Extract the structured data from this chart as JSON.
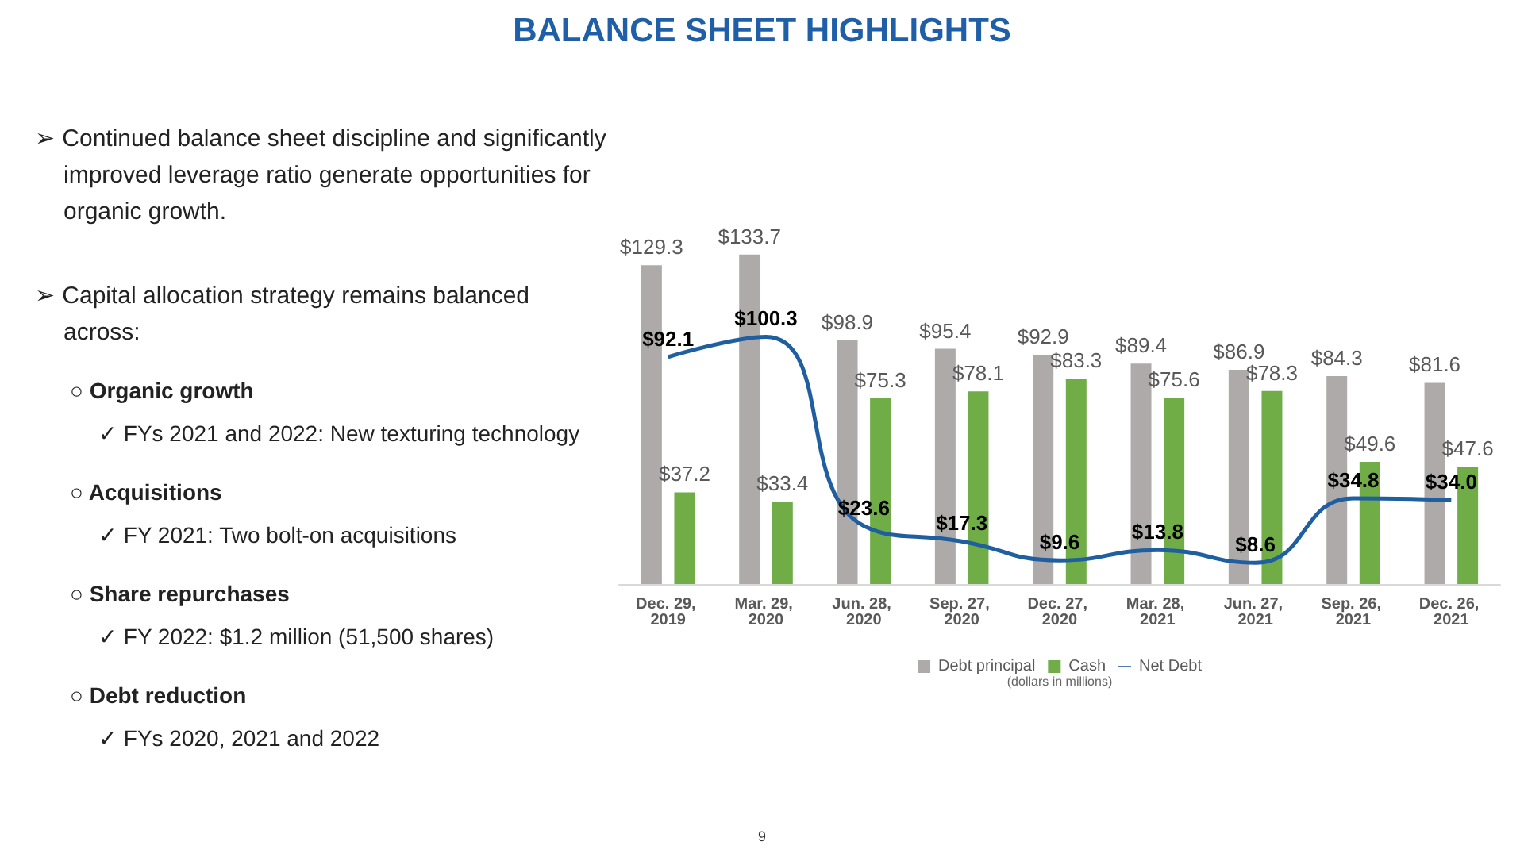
{
  "chart_data": {
    "type": "bar",
    "title": "BALANCE SHEET HIGHLIGHTS",
    "categories": [
      "Dec. 29, 2019",
      "Mar. 29, 2020",
      "Jun. 28, 2020",
      "Sep. 27, 2020",
      "Dec. 27, 2020",
      "Mar. 28, 2021",
      "Jun. 27, 2021",
      "Sep. 26, 2021",
      "Dec. 26, 2021"
    ],
    "series": [
      {
        "name": "Debt principal",
        "color": "#aeaaaa",
        "values": [
          129.3,
          133.7,
          98.9,
          95.4,
          92.9,
          89.4,
          86.9,
          84.3,
          81.6
        ],
        "value_labels": [
          "$129.3",
          "$133.7",
          "$98.9",
          "$95.4",
          "$92.9",
          "$89.4",
          "$86.9",
          "$84.3",
          "$81.6"
        ]
      },
      {
        "name": "Cash",
        "color": "#70ad47",
        "values": [
          37.2,
          33.4,
          75.3,
          78.1,
          83.3,
          75.6,
          78.3,
          49.6,
          47.6
        ],
        "value_labels": [
          "$37.2",
          "$33.4",
          "$75.3",
          "$78.1",
          "$83.3",
          "$75.6",
          "$78.3",
          "$49.6",
          "$47.6"
        ]
      },
      {
        "name": "Net Debt",
        "type": "line",
        "color": "#1f5f9f",
        "values": [
          92.1,
          100.3,
          23.6,
          17.3,
          9.6,
          13.8,
          8.6,
          34.8,
          34.0
        ],
        "value_labels": [
          "$92.1",
          "$100.3",
          "$23.6",
          "$17.3",
          "$9.6",
          "$13.8",
          "$8.6",
          "$34.8",
          "$34.0"
        ]
      }
    ],
    "legend": "bottom",
    "grid": false,
    "marker": "none",
    "line_style": "solid",
    "annotations": [
      "➢ Continued balance sheet discipline and significantly improved leverage ratio generate opportunities for organic growth.",
      "➢ Capital allocation strategy remains balanced across:",
      "○ Organic growth",
      "✓ FYs 2021 and 2022: New texturing technology",
      "○ Acquisitions",
      "✓ FY 2021: Two bolt-on acquisitions",
      "○ Share repurchases",
      "✓ FY 2022: $1.2 million (51,500 shares)",
      "○ Debt reduction",
      "✓ FYs 2020, 2021 and 2022",
      "(dollars in millions)",
      "9"
    ]
  }
}
